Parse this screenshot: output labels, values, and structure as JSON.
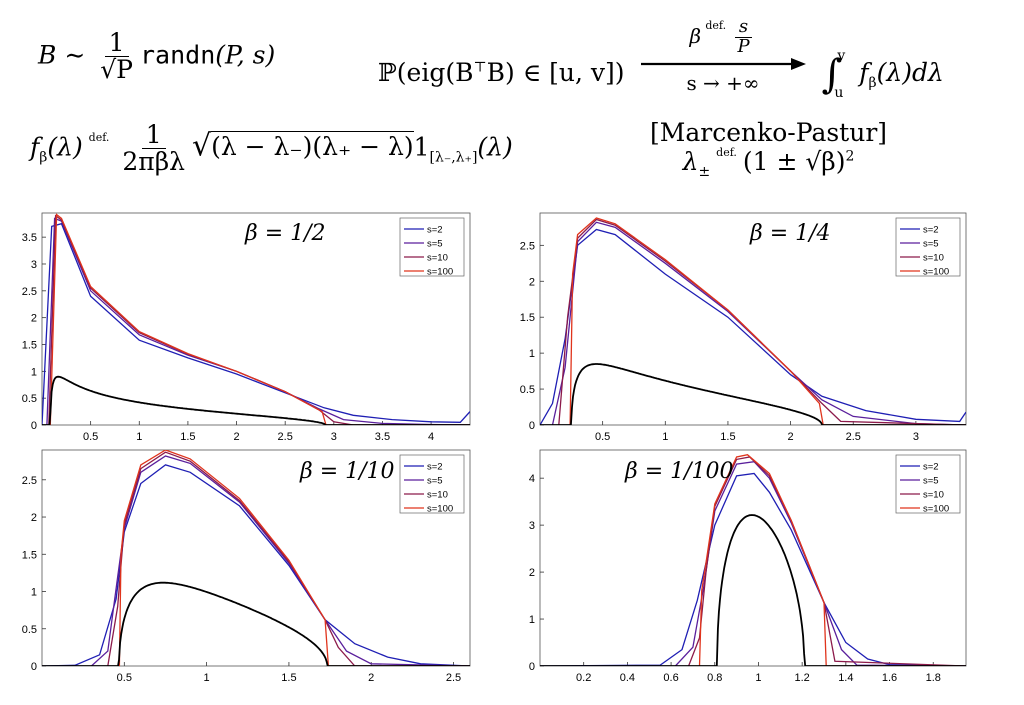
{
  "header": {
    "eq1": {
      "lhs": "B ∼",
      "frac_num": "1",
      "frac_den": "√P",
      "func": "randn",
      "args": "(P, s)"
    },
    "eq2": {
      "prob": "ℙ(eig(B",
      "transpose": "⊤",
      "rest": "B) ∈ [u, v])",
      "arrow_top": "β",
      "def_mark": "def.",
      "arrow_top_num": "s",
      "arrow_top_den": "P",
      "arrow_bottom": "s → +∞",
      "integral": "∫",
      "upper": "v",
      "lower": "u",
      "integrand": "f",
      "integrand_sub": "β",
      "integrand_rest": "(λ)dλ"
    },
    "eq3": {
      "lhs": "f",
      "lhs_sub": "β",
      "lhs_rest": "(λ)",
      "def_mark": "def.",
      "frac_num": "1",
      "frac_den": "2πβλ",
      "sqrt_body": "(λ − λ₋)(λ₊ − λ)",
      "indicator": "1",
      "indicator_sub": "[λ₋,λ₊]",
      "indicator_rest": "(λ)"
    },
    "eq4": {
      "name": "[Marcenko-Pastur]",
      "lhs": "λ",
      "lhs_sub": "±",
      "def_mark": "def.",
      "rhs": "(1 ± √β)",
      "rhs_sup": "2"
    }
  },
  "legend_labels": [
    "s=2",
    "s=5",
    "s=10",
    "s=100"
  ],
  "series_colors": [
    "#1f1fb4",
    "#5a1f9c",
    "#8c1a4a",
    "#e0341c",
    "#000000"
  ],
  "chart_data": [
    {
      "type": "line",
      "title": "β = 1/2",
      "beta": 0.5,
      "xlim": [
        0,
        4.4
      ],
      "ylim": [
        0,
        3.95
      ],
      "xticks": [
        "0.5",
        "1",
        "1.5",
        "2",
        "2.5",
        "3",
        "3.5",
        "4"
      ],
      "yticks": [
        "0",
        "0.5",
        "1",
        "1.5",
        "2",
        "2.5",
        "3",
        "3.5"
      ],
      "legend": "top-right",
      "series": [
        {
          "name": "s=2",
          "x": [
            0,
            0.1,
            0.2,
            0.5,
            1,
            1.5,
            2,
            2.5,
            2.9,
            3.2,
            3.6,
            4.0,
            4.3,
            4.4
          ],
          "y": [
            0,
            3.7,
            3.75,
            2.4,
            1.58,
            1.25,
            0.95,
            0.6,
            0.32,
            0.18,
            0.1,
            0.06,
            0.05,
            0.25
          ]
        },
        {
          "name": "s=5",
          "x": [
            0.05,
            0.13,
            0.2,
            0.5,
            1,
            1.5,
            2,
            2.5,
            2.85,
            3.1,
            3.5,
            4.0,
            4.4
          ],
          "y": [
            0,
            3.85,
            3.8,
            2.5,
            1.68,
            1.3,
            1.0,
            0.62,
            0.3,
            0.1,
            0.03,
            0.01,
            0
          ]
        },
        {
          "name": "s=10",
          "x": [
            0.07,
            0.14,
            0.2,
            0.5,
            1,
            1.5,
            2,
            2.5,
            2.85,
            3.0,
            3.2,
            4.4
          ],
          "y": [
            0,
            3.9,
            3.82,
            2.55,
            1.72,
            1.32,
            1.0,
            0.62,
            0.28,
            0.06,
            0,
            0
          ]
        },
        {
          "name": "s=100",
          "x": [
            0.085,
            0.15,
            0.2,
            0.5,
            1,
            1.5,
            2,
            2.5,
            2.88,
            2.92,
            4.4
          ],
          "y": [
            0,
            3.92,
            3.85,
            2.58,
            1.74,
            1.33,
            1.0,
            0.62,
            0.25,
            0,
            0
          ]
        }
      ]
    },
    {
      "type": "line",
      "title": "β = 1/4",
      "beta": 0.25,
      "xlim": [
        0,
        3.4
      ],
      "ylim": [
        0,
        2.95
      ],
      "xticks": [
        "0.5",
        "1",
        "1.5",
        "2",
        "2.5",
        "3"
      ],
      "yticks": [
        "0",
        "0.5",
        "1",
        "1.5",
        "2",
        "2.5"
      ],
      "legend": "top-right",
      "series": [
        {
          "name": "s=2",
          "x": [
            0,
            0.1,
            0.2,
            0.3,
            0.45,
            0.6,
            1,
            1.5,
            2,
            2.25,
            2.6,
            3.0,
            3.35,
            3.4
          ],
          "y": [
            0,
            0.3,
            1.2,
            2.5,
            2.72,
            2.65,
            2.1,
            1.5,
            0.7,
            0.4,
            0.2,
            0.08,
            0.05,
            0.18
          ]
        },
        {
          "name": "s=5",
          "x": [
            0.1,
            0.2,
            0.3,
            0.45,
            0.6,
            1,
            1.5,
            2,
            2.25,
            2.5,
            3.0,
            3.4
          ],
          "y": [
            0,
            0.8,
            2.55,
            2.82,
            2.75,
            2.25,
            1.58,
            0.75,
            0.35,
            0.12,
            0.02,
            0
          ]
        },
        {
          "name": "s=10",
          "x": [
            0.15,
            0.22,
            0.3,
            0.45,
            0.6,
            1,
            1.5,
            2,
            2.25,
            2.4,
            3.4
          ],
          "y": [
            0,
            1.5,
            2.6,
            2.86,
            2.78,
            2.28,
            1.6,
            0.75,
            0.3,
            0.05,
            0
          ]
        },
        {
          "name": "s=100",
          "x": [
            0.24,
            0.26,
            0.3,
            0.45,
            0.6,
            1,
            1.5,
            2,
            2.23,
            2.26,
            3.4
          ],
          "y": [
            0,
            2.1,
            2.65,
            2.88,
            2.8,
            2.3,
            1.6,
            0.75,
            0.3,
            0,
            0
          ]
        }
      ]
    },
    {
      "type": "line",
      "title": "β = 1/10",
      "beta": 0.1,
      "xlim": [
        0,
        2.6
      ],
      "ylim": [
        0,
        2.9
      ],
      "xticks": [
        "0.5",
        "1",
        "1.5",
        "2",
        "2.5"
      ],
      "yticks": [
        "0",
        "0.5",
        "1",
        "1.5",
        "2",
        "2.5"
      ],
      "legend": "top-right",
      "series": [
        {
          "name": "s=2",
          "x": [
            0,
            0.2,
            0.35,
            0.45,
            0.5,
            0.6,
            0.75,
            0.9,
            1.2,
            1.5,
            1.72,
            1.9,
            2.1,
            2.3,
            2.6
          ],
          "y": [
            0,
            0.01,
            0.15,
            0.9,
            1.8,
            2.45,
            2.7,
            2.6,
            2.15,
            1.35,
            0.62,
            0.3,
            0.12,
            0.03,
            0
          ]
        },
        {
          "name": "s=5",
          "x": [
            0.3,
            0.4,
            0.46,
            0.5,
            0.6,
            0.75,
            0.9,
            1.2,
            1.5,
            1.72,
            1.85,
            2.0,
            2.6
          ],
          "y": [
            0,
            0.2,
            1.2,
            1.85,
            2.6,
            2.82,
            2.72,
            2.2,
            1.38,
            0.62,
            0.2,
            0.03,
            0
          ]
        },
        {
          "name": "s=10",
          "x": [
            0.4,
            0.46,
            0.5,
            0.6,
            0.75,
            0.9,
            1.2,
            1.5,
            1.72,
            1.8,
            1.9,
            2.6
          ],
          "y": [
            0,
            0.8,
            1.9,
            2.65,
            2.87,
            2.75,
            2.22,
            1.4,
            0.62,
            0.25,
            0,
            0
          ]
        },
        {
          "name": "s=100",
          "x": [
            0.47,
            0.48,
            0.5,
            0.6,
            0.75,
            0.9,
            1.2,
            1.5,
            1.72,
            1.74,
            2.6
          ],
          "y": [
            0,
            1.5,
            1.95,
            2.7,
            2.9,
            2.78,
            2.25,
            1.42,
            0.62,
            0,
            0
          ]
        }
      ]
    },
    {
      "type": "line",
      "title": "β = 1/100",
      "beta": 0.01,
      "xlim": [
        0,
        1.95
      ],
      "ylim": [
        0,
        4.6
      ],
      "xticks": [
        "0.2",
        "0.4",
        "0.6",
        "0.8",
        "1",
        "1.2",
        "1.4",
        "1.6",
        "1.8"
      ],
      "yticks": [
        "0",
        "1",
        "2",
        "3",
        "4"
      ],
      "legend": "top-right",
      "series": [
        {
          "name": "s=2",
          "x": [
            0,
            0.55,
            0.65,
            0.72,
            0.8,
            0.9,
            0.98,
            1.05,
            1.15,
            1.3,
            1.4,
            1.5,
            1.6,
            1.95
          ],
          "y": [
            0,
            0.02,
            0.35,
            1.4,
            3.0,
            4.05,
            4.1,
            3.7,
            2.9,
            1.35,
            0.5,
            0.15,
            0.03,
            0
          ]
        },
        {
          "name": "s=5",
          "x": [
            0.62,
            0.7,
            0.75,
            0.8,
            0.9,
            0.98,
            1.05,
            1.15,
            1.3,
            1.38,
            1.45,
            1.95
          ],
          "y": [
            0,
            0.4,
            1.7,
            3.3,
            4.3,
            4.35,
            4.0,
            3.05,
            1.35,
            0.35,
            0.02,
            0
          ]
        },
        {
          "name": "s=10",
          "x": [
            0.68,
            0.73,
            0.76,
            0.8,
            0.9,
            0.96,
            1.05,
            1.15,
            1.3,
            1.35,
            1.95
          ],
          "y": [
            0,
            0.6,
            2.0,
            3.4,
            4.4,
            4.45,
            4.05,
            3.1,
            1.35,
            0.1,
            0
          ]
        },
        {
          "name": "s=100",
          "x": [
            0.73,
            0.74,
            0.76,
            0.8,
            0.9,
            0.95,
            1.05,
            1.15,
            1.3,
            1.31,
            1.95
          ],
          "y": [
            0,
            1.6,
            2.2,
            3.45,
            4.45,
            4.5,
            4.1,
            3.1,
            1.35,
            0,
            0
          ]
        }
      ]
    }
  ]
}
